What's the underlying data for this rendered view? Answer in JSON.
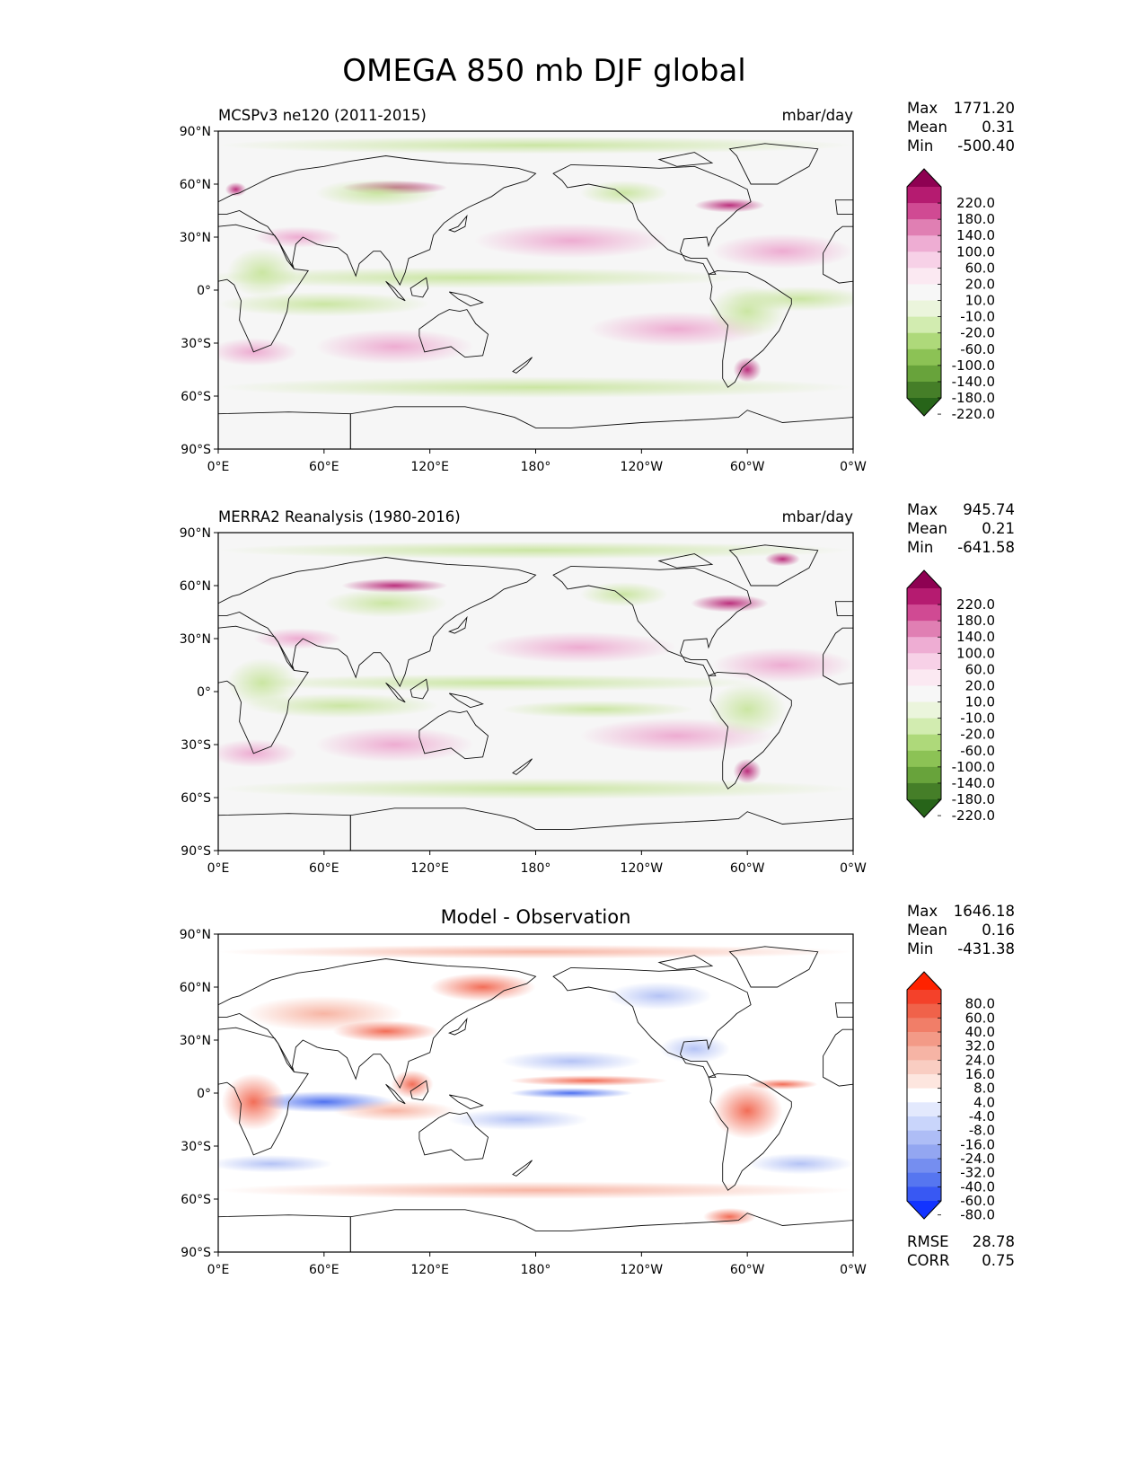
{
  "figure_title": "OMEGA 850 mb DJF global",
  "chart_data": [
    {
      "type": "heatmap",
      "title": "MCSPv3 ne120 (2011-2015)",
      "units": "mbar/day",
      "stats": [
        {
          "label": "Max",
          "value": "1771.20"
        },
        {
          "label": "Mean",
          "value": "0.31"
        },
        {
          "label": "Min",
          "value": "-500.40"
        }
      ],
      "x_ticks": [
        "0°E",
        "60°E",
        "120°E",
        "180°",
        "120°W",
        "60°W",
        "0°W"
      ],
      "y_ticks": [
        "90°N",
        "60°N",
        "30°N",
        "0°",
        "30°S",
        "60°S",
        "90°S"
      ],
      "xlim": [
        0,
        360
      ],
      "ylim": [
        -90,
        90
      ],
      "colorbar": {
        "labels": [
          "220.0",
          "180.0",
          "140.0",
          "100.0",
          "60.0",
          "20.0",
          "10.0",
          "-10.0",
          "-20.0",
          "-60.0",
          "-100.0",
          "-140.0",
          "-180.0",
          "-220.0"
        ],
        "colors": [
          "#8e0152",
          "#b51b70",
          "#d04a93",
          "#e07fb3",
          "#eeadd3",
          "#f7d1e7",
          "#fbe9f2",
          "#f7f7f7",
          "#ebf5dc",
          "#d2ecb0",
          "#aed97a",
          "#8cc255",
          "#68a33b",
          "#457e28",
          "#276419"
        ]
      }
    },
    {
      "type": "heatmap",
      "title": "MERRA2 Reanalysis (1980-2016)",
      "units": "mbar/day",
      "stats": [
        {
          "label": "Max",
          "value": "945.74"
        },
        {
          "label": "Mean",
          "value": "0.21"
        },
        {
          "label": "Min",
          "value": "-641.58"
        }
      ],
      "x_ticks": [
        "0°E",
        "60°E",
        "120°E",
        "180°",
        "120°W",
        "60°W",
        "0°W"
      ],
      "y_ticks": [
        "90°N",
        "60°N",
        "30°N",
        "0°",
        "30°S",
        "60°S",
        "90°S"
      ],
      "xlim": [
        0,
        360
      ],
      "ylim": [
        -90,
        90
      ],
      "colorbar": {
        "labels": [
          "220.0",
          "180.0",
          "140.0",
          "100.0",
          "60.0",
          "20.0",
          "10.0",
          "-10.0",
          "-20.0",
          "-60.0",
          "-100.0",
          "-140.0",
          "-180.0",
          "-220.0"
        ],
        "colors": [
          "#8e0152",
          "#b51b70",
          "#d04a93",
          "#e07fb3",
          "#eeadd3",
          "#f7d1e7",
          "#fbe9f2",
          "#f7f7f7",
          "#ebf5dc",
          "#d2ecb0",
          "#aed97a",
          "#8cc255",
          "#68a33b",
          "#457e28",
          "#276419"
        ]
      }
    },
    {
      "type": "heatmap",
      "title": "Model - Observation",
      "stats": [
        {
          "label": "Max",
          "value": "1646.18"
        },
        {
          "label": "Mean",
          "value": "0.16"
        },
        {
          "label": "Min",
          "value": "-431.38"
        }
      ],
      "extra_stats": [
        {
          "label": "RMSE",
          "value": "28.78"
        },
        {
          "label": "CORR",
          "value": "0.75"
        }
      ],
      "x_ticks": [
        "0°E",
        "60°E",
        "120°E",
        "180°",
        "120°W",
        "60°W",
        "0°W"
      ],
      "y_ticks": [
        "90°N",
        "60°N",
        "30°N",
        "0°",
        "30°S",
        "60°S",
        "90°S"
      ],
      "xlim": [
        0,
        360
      ],
      "ylim": [
        -90,
        90
      ],
      "colorbar": {
        "labels": [
          "80.0",
          "60.0",
          "40.0",
          "32.0",
          "24.0",
          "16.0",
          "8.0",
          "4.0",
          "-4.0",
          "-8.0",
          "-16.0",
          "-24.0",
          "-32.0",
          "-40.0",
          "-60.0",
          "-80.0"
        ],
        "colors": [
          "#ff2200",
          "#f4412a",
          "#f0624a",
          "#f17e68",
          "#f39a87",
          "#f6b4a5",
          "#f9cdc2",
          "#fde6df",
          "#ffffff",
          "#e3e9fd",
          "#c9d5fb",
          "#aebdf6",
          "#93a6f1",
          "#758ef0",
          "#5676f0",
          "#3858f3",
          "#1233ff"
        ]
      }
    }
  ]
}
